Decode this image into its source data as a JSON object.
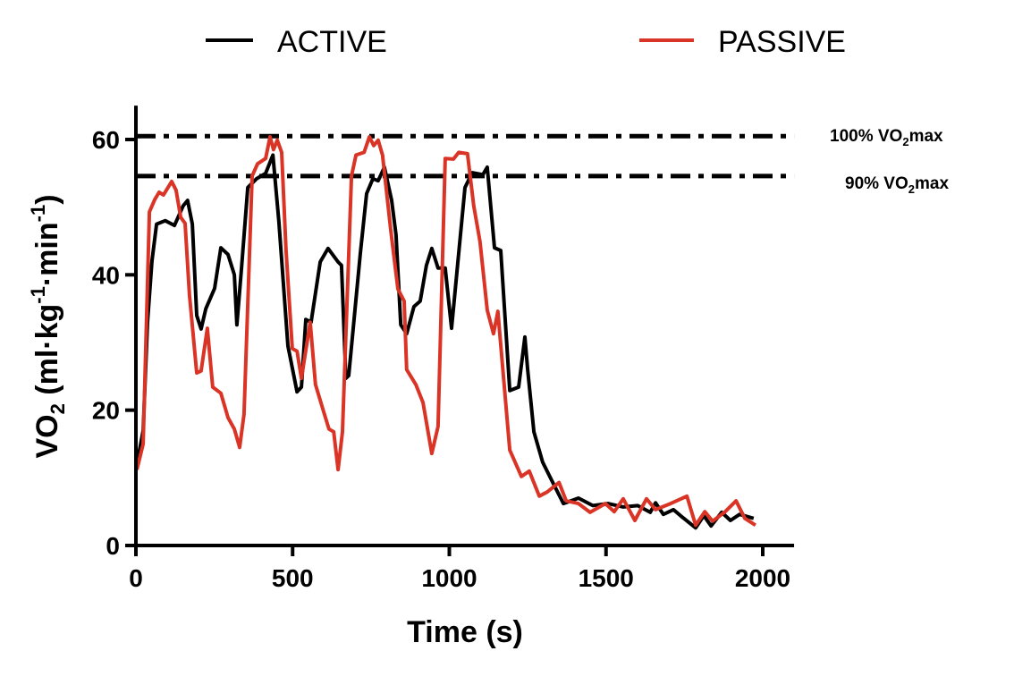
{
  "chart_data": {
    "type": "line",
    "title": "",
    "xlabel": "Time (s)",
    "ylabel_parts": {
      "pre": "VO",
      "sub": "2",
      "mid": " (ml·kg",
      "sup1": "-1",
      "mid2": "·min",
      "sup2": "-1",
      "post": ")"
    },
    "xlim": [
      0,
      2100
    ],
    "ylim": [
      0,
      65
    ],
    "xticks": [
      0,
      500,
      1000,
      1500,
      2000
    ],
    "yticks": [
      0,
      20,
      40,
      60
    ],
    "grid": false,
    "legend_placement": "top",
    "reference_lines": [
      {
        "y": 60.5,
        "label_pre": "100% VO",
        "label_sub": "2",
        "label_post": "max",
        "style": "dash-dot"
      },
      {
        "y": 54.6,
        "label_pre": "90% VO",
        "label_sub": "2",
        "label_post": "max",
        "style": "dash-dot"
      }
    ],
    "series": [
      {
        "name": "ACTIVE",
        "color": "#000000",
        "x": [
          0,
          23,
          37,
          51,
          66,
          94,
          123,
          151,
          165,
          180,
          194,
          208,
          223,
          251,
          271,
          294,
          314,
          322,
          337,
          357,
          385,
          414,
          437,
          456,
          485,
          514,
          528,
          542,
          559,
          588,
          613,
          645,
          656,
          670,
          679,
          716,
          736,
          756,
          773,
          793,
          816,
          830,
          845,
          864,
          887,
          907,
          927,
          944,
          964,
          987,
          1007,
          1050,
          1073,
          1107,
          1121,
          1144,
          1164,
          1193,
          1221,
          1241,
          1250,
          1270,
          1298,
          1327,
          1364,
          1412,
          1458,
          1506,
          1555,
          1601,
          1641,
          1658,
          1683,
          1715,
          1743,
          1786,
          1812,
          1835,
          1869,
          1897,
          1926,
          1971
        ],
        "y": [
          11.2,
          17,
          33,
          42,
          47.5,
          48,
          47.3,
          50.2,
          51,
          47.5,
          34,
          32,
          35,
          38,
          44,
          43,
          40,
          32.6,
          41,
          52.9,
          54.2,
          55,
          57.7,
          48,
          29.5,
          22.7,
          23.4,
          33.4,
          33,
          41.9,
          43.9,
          41.9,
          41.4,
          24.7,
          25.1,
          43.2,
          52,
          54.2,
          53.9,
          55.9,
          51,
          45.9,
          32.6,
          31.3,
          35.3,
          36.1,
          41.4,
          43.9,
          41,
          41,
          32.1,
          52.9,
          55.1,
          54.8,
          55.9,
          44,
          43.6,
          22.9,
          23.4,
          30.8,
          26,
          16.8,
          12.3,
          9.6,
          6.2,
          7,
          5.9,
          6.2,
          5.7,
          5.9,
          4.9,
          6.3,
          4.6,
          5.3,
          4.2,
          2.6,
          4.4,
          2.9,
          4.9,
          3.7,
          4.6,
          4.0
        ]
      },
      {
        "name": "PASSIVE",
        "color": "#d93425",
        "x": [
          3,
          23,
          43,
          60,
          74,
          88,
          114,
          128,
          143,
          157,
          171,
          194,
          208,
          228,
          245,
          271,
          294,
          314,
          331,
          345,
          371,
          388,
          414,
          428,
          439,
          451,
          465,
          479,
          499,
          514,
          528,
          556,
          573,
          599,
          616,
          631,
          645,
          659,
          688,
          702,
          728,
          745,
          759,
          773,
          787,
          813,
          836,
          856,
          864,
          893,
          916,
          944,
          964,
          987,
          1013,
          1030,
          1058,
          1078,
          1098,
          1121,
          1141,
          1155,
          1170,
          1193,
          1230,
          1255,
          1287,
          1312,
          1350,
          1373,
          1412,
          1449,
          1498,
          1526,
          1555,
          1592,
          1629,
          1658,
          1706,
          1758,
          1786,
          1815,
          1840,
          1878,
          1915,
          1943,
          1977
        ],
        "y": [
          11.2,
          15,
          49.3,
          51.1,
          52.2,
          51.8,
          53.8,
          52.5,
          48.5,
          47.6,
          37,
          25.5,
          25.8,
          32.1,
          23.4,
          22.5,
          18.9,
          17.2,
          14.5,
          19.4,
          54.6,
          56.4,
          57.2,
          60.4,
          58.5,
          59.9,
          58.1,
          43.6,
          29.1,
          28.7,
          24.7,
          33,
          23.8,
          19.8,
          17.2,
          16.8,
          11.2,
          16.8,
          54.6,
          57.7,
          58.1,
          60.4,
          59.1,
          59.9,
          57.7,
          46.6,
          37.9,
          36.1,
          26,
          23.8,
          21.1,
          13.6,
          17.6,
          57.2,
          57.1,
          58.1,
          57.9,
          50.2,
          44.9,
          34.8,
          31.3,
          34.6,
          26.4,
          14.1,
          10.2,
          11,
          7.3,
          7.9,
          9.3,
          6.6,
          6.2,
          4.9,
          6.2,
          5,
          6.9,
          3.7,
          6.9,
          5.3,
          6.2,
          7.3,
          3,
          5,
          3.6,
          4.9,
          6.6,
          4,
          3
        ]
      }
    ]
  }
}
